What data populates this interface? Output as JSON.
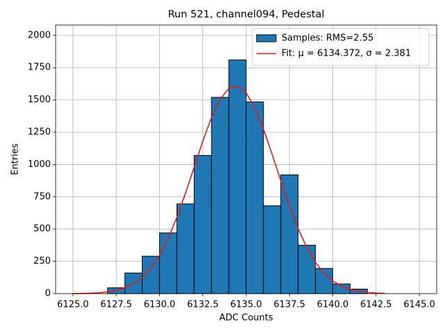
{
  "chart_data": {
    "type": "histogram",
    "title": "Run 521, channel094, Pedestal",
    "xlabel": "ADC Counts",
    "ylabel": "Entries",
    "bins": [
      6127,
      6128,
      6129,
      6130,
      6131,
      6132,
      6133,
      6134,
      6135,
      6136,
      6137,
      6138,
      6139,
      6140,
      6141,
      6142
    ],
    "series": [
      {
        "name": "Samples: RMS=2.55",
        "color": "#1f77b4",
        "values": [
          45,
          160,
          290,
          470,
          695,
          1070,
          1520,
          1810,
          1485,
          680,
          920,
          375,
          195,
          75,
          35
        ]
      },
      {
        "name": "Fit: μ = 6134.372, σ = 2.381",
        "color": "#e41a1c",
        "x": [
          6125,
          6125.5,
          6126,
          6126.5,
          6127,
          6127.5,
          6128,
          6128.5,
          6129,
          6129.5,
          6130,
          6130.5,
          6131,
          6131.5,
          6132,
          6132.5,
          6133,
          6133.5,
          6134,
          6134.5,
          6135,
          6135.5,
          6136,
          6136.5,
          6137,
          6137.5,
          6138,
          6138.5,
          6139,
          6139.5,
          6140,
          6140.5,
          6141,
          6141.5,
          6142,
          6142.5,
          6143
        ],
        "values": [
          0.7,
          1.6,
          3.3,
          6.8,
          13.3,
          25,
          44.8,
          77,
          126,
          198,
          298,
          429,
          591,
          778,
          980,
          1182,
          1364,
          1506,
          1590,
          1608,
          1555,
          1439,
          1274,
          1080,
          876,
          679,
          504,
          358,
          243,
          158,
          98.5,
          58.7,
          33.4,
          18.2,
          9.5,
          4.7,
          2.3
        ]
      }
    ],
    "xlim": [
      6124,
      6146
    ],
    "ylim": [
      0,
      2080
    ],
    "xticks": [
      {
        "value": 6125,
        "label": "6125.0"
      },
      6127.5,
      {
        "value": 6130,
        "label": "6130.0"
      },
      6132.5,
      {
        "value": 6135,
        "label": "6135.0"
      },
      6137.5,
      {
        "value": 6140,
        "label": "6140.0"
      },
      6142.5,
      {
        "value": 6145,
        "label": "6145.0"
      }
    ],
    "yticks": [
      0,
      250,
      500,
      750,
      1000,
      1250,
      1500,
      1750,
      2000
    ],
    "grid": true,
    "legend": "upper right"
  }
}
